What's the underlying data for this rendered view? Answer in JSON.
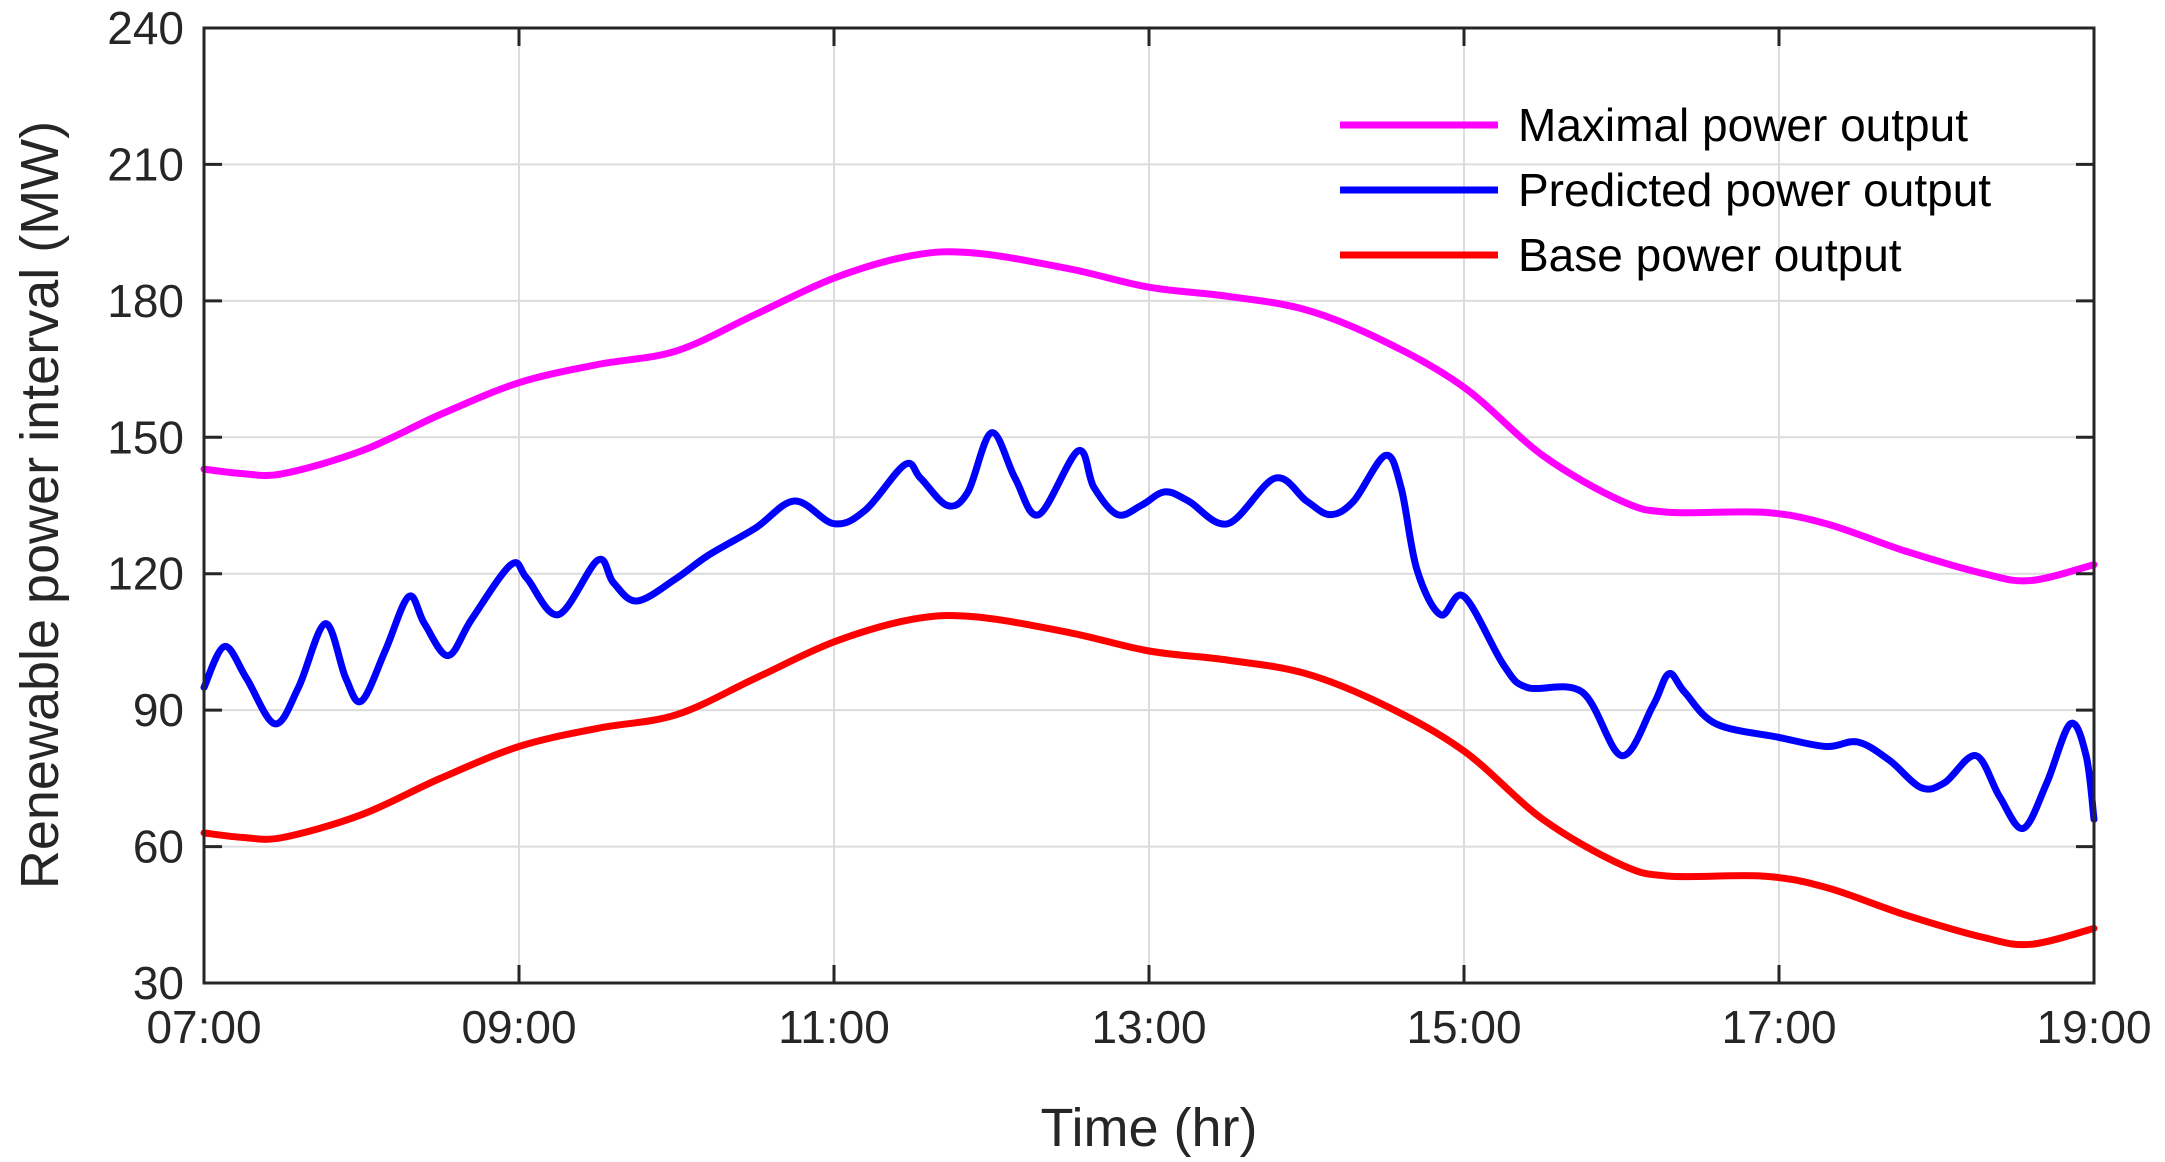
{
  "chart_data": {
    "type": "line",
    "title": "",
    "xlabel": "Time (hr)",
    "ylabel": "Renewable power interval (MW)",
    "xlim": [
      7,
      19
    ],
    "ylim": [
      30,
      240
    ],
    "x_ticks": [
      {
        "value": 7,
        "label": "07:00"
      },
      {
        "value": 9,
        "label": "09:00"
      },
      {
        "value": 11,
        "label": "11:00"
      },
      {
        "value": 13,
        "label": "13:00"
      },
      {
        "value": 15,
        "label": "15:00"
      },
      {
        "value": 17,
        "label": "17:00"
      },
      {
        "value": 19,
        "label": "19:00"
      }
    ],
    "y_ticks": [
      30,
      60,
      90,
      120,
      150,
      180,
      210,
      240
    ],
    "grid": true,
    "legend_position": "top-right",
    "series": [
      {
        "name": "Maximal power output",
        "color": "#ff00ff",
        "points": [
          [
            7.0,
            143
          ],
          [
            7.25,
            142
          ],
          [
            7.5,
            142
          ],
          [
            8.0,
            147
          ],
          [
            8.5,
            155
          ],
          [
            9.0,
            162
          ],
          [
            9.5,
            166
          ],
          [
            10.0,
            169
          ],
          [
            10.5,
            177
          ],
          [
            11.0,
            185
          ],
          [
            11.5,
            190
          ],
          [
            11.9,
            190.5
          ],
          [
            12.5,
            187
          ],
          [
            13.0,
            183
          ],
          [
            13.5,
            181
          ],
          [
            14.0,
            178
          ],
          [
            14.5,
            171
          ],
          [
            15.0,
            161
          ],
          [
            15.5,
            146
          ],
          [
            16.0,
            136
          ],
          [
            16.3,
            133.5
          ],
          [
            16.9,
            133.5
          ],
          [
            17.3,
            131
          ],
          [
            17.8,
            125
          ],
          [
            18.3,
            120
          ],
          [
            18.6,
            118.5
          ],
          [
            19.0,
            122
          ]
        ]
      },
      {
        "name": "Predicted power output",
        "color": "#0000ff",
        "points": [
          [
            7.0,
            95
          ],
          [
            7.13,
            104
          ],
          [
            7.27,
            97
          ],
          [
            7.45,
            87
          ],
          [
            7.6,
            95
          ],
          [
            7.77,
            109
          ],
          [
            7.9,
            97
          ],
          [
            8.0,
            92
          ],
          [
            8.15,
            103
          ],
          [
            8.3,
            115
          ],
          [
            8.4,
            109
          ],
          [
            8.55,
            102
          ],
          [
            8.7,
            110
          ],
          [
            8.95,
            122
          ],
          [
            9.05,
            119
          ],
          [
            9.25,
            111
          ],
          [
            9.5,
            123
          ],
          [
            9.6,
            118
          ],
          [
            9.75,
            114
          ],
          [
            10.0,
            119
          ],
          [
            10.2,
            124
          ],
          [
            10.5,
            130
          ],
          [
            10.75,
            136
          ],
          [
            11.0,
            131
          ],
          [
            11.2,
            134
          ],
          [
            11.45,
            144
          ],
          [
            11.55,
            141
          ],
          [
            11.72,
            135
          ],
          [
            11.85,
            138
          ],
          [
            12.0,
            151
          ],
          [
            12.15,
            141
          ],
          [
            12.3,
            133
          ],
          [
            12.55,
            147
          ],
          [
            12.65,
            139
          ],
          [
            12.8,
            133
          ],
          [
            12.95,
            135
          ],
          [
            13.1,
            138
          ],
          [
            13.25,
            136
          ],
          [
            13.5,
            131
          ],
          [
            13.8,
            141
          ],
          [
            14.0,
            136
          ],
          [
            14.15,
            133
          ],
          [
            14.3,
            136
          ],
          [
            14.5,
            146
          ],
          [
            14.6,
            139
          ],
          [
            14.7,
            121
          ],
          [
            14.85,
            111
          ],
          [
            15.0,
            115
          ],
          [
            15.25,
            100
          ],
          [
            15.4,
            95
          ],
          [
            15.75,
            94
          ],
          [
            16.0,
            80
          ],
          [
            16.2,
            91
          ],
          [
            16.3,
            98
          ],
          [
            16.4,
            94
          ],
          [
            16.6,
            87
          ],
          [
            17.0,
            84
          ],
          [
            17.3,
            82
          ],
          [
            17.5,
            83
          ],
          [
            17.7,
            79
          ],
          [
            17.9,
            73
          ],
          [
            18.05,
            74
          ],
          [
            18.25,
            80
          ],
          [
            18.4,
            71
          ],
          [
            18.55,
            64
          ],
          [
            18.7,
            74
          ],
          [
            18.85,
            87
          ],
          [
            18.95,
            80
          ],
          [
            19.0,
            66
          ]
        ]
      },
      {
        "name": "Base power output",
        "color": "#ff0000",
        "points": [
          [
            7.0,
            63
          ],
          [
            7.25,
            62
          ],
          [
            7.5,
            62
          ],
          [
            8.0,
            67
          ],
          [
            8.5,
            75
          ],
          [
            9.0,
            82
          ],
          [
            9.5,
            86
          ],
          [
            10.0,
            89
          ],
          [
            10.5,
            97
          ],
          [
            11.0,
            105
          ],
          [
            11.5,
            110
          ],
          [
            11.9,
            110.5
          ],
          [
            12.5,
            107
          ],
          [
            13.0,
            103
          ],
          [
            13.5,
            101
          ],
          [
            14.0,
            98
          ],
          [
            14.5,
            91
          ],
          [
            15.0,
            81
          ],
          [
            15.5,
            66
          ],
          [
            16.0,
            56
          ],
          [
            16.3,
            53.5
          ],
          [
            16.9,
            53.5
          ],
          [
            17.3,
            51
          ],
          [
            17.8,
            45
          ],
          [
            18.3,
            40
          ],
          [
            18.6,
            38.5
          ],
          [
            19.0,
            42
          ]
        ]
      }
    ]
  }
}
